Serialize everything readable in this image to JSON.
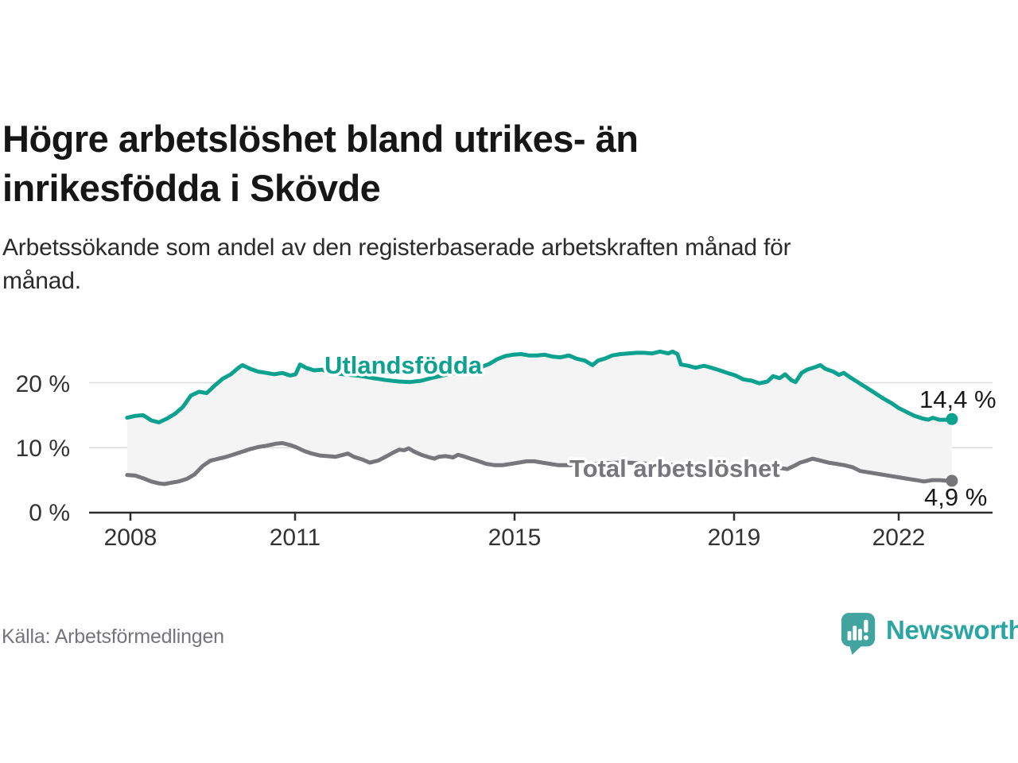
{
  "header": {
    "title_lines": [
      "Högre arbetslöshet bland utrikes- än",
      "inrikesfödda i Skövde"
    ],
    "subtitle_lines": [
      "Arbetssökande som andel av den registerbaserade arbetskraften månad för",
      "månad."
    ]
  },
  "axes": {
    "y_labels": [
      "20 %",
      "10 %",
      "0 %"
    ],
    "x_labels": [
      "2008",
      "2011",
      "2015",
      "2019",
      "2022"
    ]
  },
  "footer": {
    "source_label": "Källa: Arbetsförmedlingen",
    "logo_text": "Newsworthy"
  },
  "colors": {
    "utlandsfodda": "#0da190",
    "total": "#76767b",
    "band": "#f4f4f4",
    "gridline": "#dcdcdc",
    "axis": "#2e2e2e",
    "logo_bubble": "#42a49f",
    "logo_text": "#2ba4a4"
  },
  "chart_data": {
    "type": "line",
    "title": "Högre arbetslöshet bland utrikes- än inrikesfödda i Skövde",
    "subtitle": "Arbetssökande som andel av den registerbaserade arbetskraften månad för månad.",
    "x_unit": "decimal_year",
    "y_unit": "percent",
    "x_ticks": [
      2008,
      2011,
      2015,
      2019,
      2022
    ],
    "y_ticks": [
      0,
      10,
      20
    ],
    "x_range": [
      2007.9,
      2023.1
    ],
    "y_range": [
      0,
      29
    ],
    "grid": "horizontal",
    "band_between_series": true,
    "band_fill": "#f4f4f4",
    "legend_position": "inline-labels",
    "series": [
      {
        "name": "Utlandsfödda",
        "color": "#0da190",
        "end_label": "14,4 %",
        "end_value": 14.4,
        "points": [
          [
            2007.94,
            14.6
          ],
          [
            2008.09,
            14.9
          ],
          [
            2008.23,
            15.0
          ],
          [
            2008.38,
            14.2
          ],
          [
            2008.52,
            13.9
          ],
          [
            2008.67,
            14.5
          ],
          [
            2008.81,
            15.2
          ],
          [
            2008.96,
            16.3
          ],
          [
            2009.1,
            18.0
          ],
          [
            2009.25,
            18.6
          ],
          [
            2009.39,
            18.4
          ],
          [
            2009.54,
            19.6
          ],
          [
            2009.68,
            20.6
          ],
          [
            2009.83,
            21.3
          ],
          [
            2009.97,
            22.3
          ],
          [
            2010.04,
            22.7
          ],
          [
            2010.19,
            22.1
          ],
          [
            2010.33,
            21.7
          ],
          [
            2010.48,
            21.5
          ],
          [
            2010.62,
            21.3
          ],
          [
            2010.77,
            21.5
          ],
          [
            2010.91,
            21.1
          ],
          [
            2011.01,
            21.3
          ],
          [
            2011.09,
            22.8
          ],
          [
            2011.2,
            22.3
          ],
          [
            2011.35,
            21.9
          ],
          [
            2011.49,
            22.0
          ],
          [
            2011.64,
            21.6
          ],
          [
            2011.78,
            21.4
          ],
          [
            2012.0,
            21.2
          ],
          [
            2012.22,
            21.0
          ],
          [
            2012.43,
            20.7
          ],
          [
            2012.65,
            20.4
          ],
          [
            2012.87,
            20.2
          ],
          [
            2013.09,
            20.1
          ],
          [
            2013.3,
            20.3
          ],
          [
            2013.52,
            20.8
          ],
          [
            2013.74,
            21.2
          ],
          [
            2013.96,
            21.5
          ],
          [
            2014.17,
            21.9
          ],
          [
            2014.39,
            22.4
          ],
          [
            2014.54,
            22.9
          ],
          [
            2014.68,
            23.6
          ],
          [
            2014.83,
            24.1
          ],
          [
            2014.97,
            24.3
          ],
          [
            2015.12,
            24.4
          ],
          [
            2015.26,
            24.2
          ],
          [
            2015.41,
            24.2
          ],
          [
            2015.55,
            24.3
          ],
          [
            2015.7,
            24.0
          ],
          [
            2015.84,
            23.9
          ],
          [
            2015.99,
            24.2
          ],
          [
            2016.13,
            23.7
          ],
          [
            2016.28,
            23.4
          ],
          [
            2016.42,
            22.7
          ],
          [
            2016.52,
            23.4
          ],
          [
            2016.64,
            23.7
          ],
          [
            2016.78,
            24.2
          ],
          [
            2016.93,
            24.4
          ],
          [
            2017.07,
            24.5
          ],
          [
            2017.22,
            24.6
          ],
          [
            2017.36,
            24.6
          ],
          [
            2017.51,
            24.5
          ],
          [
            2017.65,
            24.8
          ],
          [
            2017.8,
            24.5
          ],
          [
            2017.88,
            24.8
          ],
          [
            2017.97,
            24.4
          ],
          [
            2018.03,
            22.8
          ],
          [
            2018.16,
            22.6
          ],
          [
            2018.3,
            22.3
          ],
          [
            2018.45,
            22.6
          ],
          [
            2018.59,
            22.3
          ],
          [
            2018.74,
            21.9
          ],
          [
            2018.88,
            21.5
          ],
          [
            2019.03,
            21.1
          ],
          [
            2019.17,
            20.5
          ],
          [
            2019.32,
            20.3
          ],
          [
            2019.46,
            19.9
          ],
          [
            2019.61,
            20.2
          ],
          [
            2019.71,
            21.0
          ],
          [
            2019.83,
            20.7
          ],
          [
            2019.93,
            21.3
          ],
          [
            2020.04,
            20.4
          ],
          [
            2020.12,
            20.1
          ],
          [
            2020.23,
            21.5
          ],
          [
            2020.33,
            22.0
          ],
          [
            2020.48,
            22.4
          ],
          [
            2020.57,
            22.7
          ],
          [
            2020.67,
            22.1
          ],
          [
            2020.81,
            21.7
          ],
          [
            2020.91,
            21.2
          ],
          [
            2021.0,
            21.5
          ],
          [
            2021.1,
            20.9
          ],
          [
            2021.25,
            20.1
          ],
          [
            2021.42,
            19.2
          ],
          [
            2021.57,
            18.4
          ],
          [
            2021.71,
            17.6
          ],
          [
            2021.86,
            16.9
          ],
          [
            2022.0,
            16.1
          ],
          [
            2022.14,
            15.5
          ],
          [
            2022.29,
            14.9
          ],
          [
            2022.43,
            14.5
          ],
          [
            2022.54,
            14.3
          ],
          [
            2022.62,
            14.6
          ],
          [
            2022.74,
            14.3
          ],
          [
            2022.87,
            14.3
          ],
          [
            2022.97,
            14.4
          ]
        ]
      },
      {
        "name": "Total arbetslöshet",
        "color": "#76767b",
        "end_label": "4,9 %",
        "end_value": 4.9,
        "points": [
          [
            2007.94,
            5.8
          ],
          [
            2008.09,
            5.7
          ],
          [
            2008.23,
            5.3
          ],
          [
            2008.38,
            4.8
          ],
          [
            2008.52,
            4.5
          ],
          [
            2008.62,
            4.4
          ],
          [
            2008.74,
            4.6
          ],
          [
            2008.88,
            4.8
          ],
          [
            2009.03,
            5.2
          ],
          [
            2009.17,
            5.9
          ],
          [
            2009.32,
            7.2
          ],
          [
            2009.46,
            8.0
          ],
          [
            2009.61,
            8.3
          ],
          [
            2009.75,
            8.6
          ],
          [
            2009.9,
            9.0
          ],
          [
            2010.04,
            9.4
          ],
          [
            2010.19,
            9.8
          ],
          [
            2010.33,
            10.1
          ],
          [
            2010.48,
            10.3
          ],
          [
            2010.65,
            10.6
          ],
          [
            2010.77,
            10.7
          ],
          [
            2010.91,
            10.4
          ],
          [
            2011.01,
            10.1
          ],
          [
            2011.16,
            9.5
          ],
          [
            2011.3,
            9.1
          ],
          [
            2011.45,
            8.8
          ],
          [
            2011.59,
            8.7
          ],
          [
            2011.74,
            8.6
          ],
          [
            2011.88,
            8.9
          ],
          [
            2011.96,
            9.1
          ],
          [
            2012.07,
            8.6
          ],
          [
            2012.22,
            8.2
          ],
          [
            2012.36,
            7.7
          ],
          [
            2012.51,
            8.0
          ],
          [
            2012.65,
            8.6
          ],
          [
            2012.8,
            9.3
          ],
          [
            2012.9,
            9.7
          ],
          [
            2012.99,
            9.6
          ],
          [
            2013.07,
            9.9
          ],
          [
            2013.17,
            9.4
          ],
          [
            2013.3,
            8.9
          ],
          [
            2013.45,
            8.5
          ],
          [
            2013.54,
            8.3
          ],
          [
            2013.62,
            8.6
          ],
          [
            2013.74,
            8.7
          ],
          [
            2013.88,
            8.5
          ],
          [
            2013.97,
            8.9
          ],
          [
            2014.06,
            8.7
          ],
          [
            2014.2,
            8.3
          ],
          [
            2014.35,
            7.9
          ],
          [
            2014.49,
            7.5
          ],
          [
            2014.64,
            7.3
          ],
          [
            2014.78,
            7.3
          ],
          [
            2014.93,
            7.5
          ],
          [
            2015.07,
            7.7
          ],
          [
            2015.22,
            7.9
          ],
          [
            2015.36,
            7.9
          ],
          [
            2015.51,
            7.7
          ],
          [
            2015.65,
            7.5
          ],
          [
            2015.8,
            7.3
          ],
          [
            2015.99,
            7.3
          ],
          [
            2016.2,
            7.4
          ],
          [
            2016.42,
            7.5
          ],
          [
            2016.64,
            7.6
          ],
          [
            2016.86,
            7.7
          ],
          [
            2017.07,
            7.7
          ],
          [
            2017.29,
            7.6
          ],
          [
            2017.51,
            7.5
          ],
          [
            2017.72,
            7.4
          ],
          [
            2017.94,
            7.3
          ],
          [
            2018.16,
            7.2
          ],
          [
            2018.38,
            7.1
          ],
          [
            2018.59,
            7.0
          ],
          [
            2018.81,
            7.0
          ],
          [
            2019.03,
            7.0
          ],
          [
            2019.25,
            7.1
          ],
          [
            2019.46,
            7.1
          ],
          [
            2019.68,
            7.0
          ],
          [
            2019.83,
            6.9
          ],
          [
            2019.97,
            6.7
          ],
          [
            2020.12,
            7.3
          ],
          [
            2020.2,
            7.7
          ],
          [
            2020.29,
            7.9
          ],
          [
            2020.43,
            8.3
          ],
          [
            2020.58,
            8.0
          ],
          [
            2020.72,
            7.7
          ],
          [
            2020.87,
            7.5
          ],
          [
            2021.01,
            7.3
          ],
          [
            2021.16,
            7.0
          ],
          [
            2021.3,
            6.4
          ],
          [
            2021.45,
            6.2
          ],
          [
            2021.59,
            6.0
          ],
          [
            2021.74,
            5.8
          ],
          [
            2021.88,
            5.6
          ],
          [
            2022.03,
            5.4
          ],
          [
            2022.17,
            5.2
          ],
          [
            2022.32,
            5.0
          ],
          [
            2022.46,
            4.8
          ],
          [
            2022.61,
            5.0
          ],
          [
            2022.75,
            5.0
          ],
          [
            2022.87,
            4.9
          ],
          [
            2022.97,
            4.9
          ]
        ]
      }
    ]
  }
}
